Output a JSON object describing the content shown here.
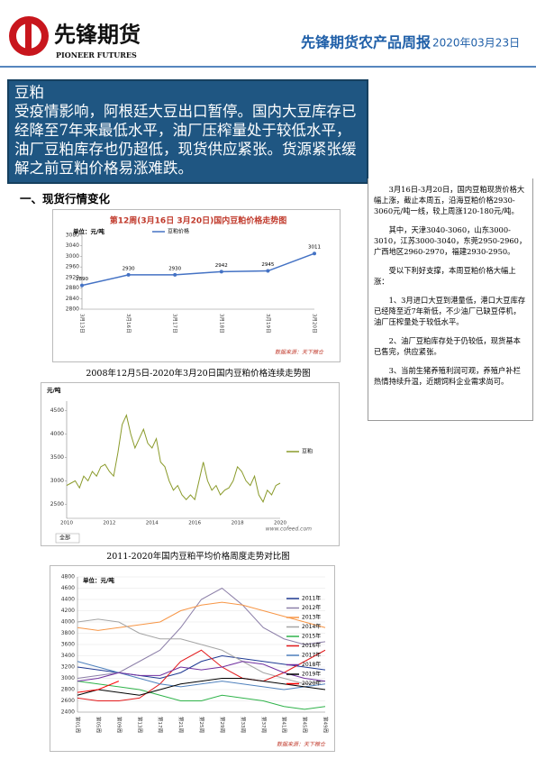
{
  "header": {
    "logo_cn": "先锋期货",
    "logo_en": "PIONEER FUTURES",
    "title": "先锋期货农产品周报",
    "date": "2020年03月23日"
  },
  "banner": {
    "title": "豆粕",
    "text": "受疫情影响，阿根廷大豆出口暂停。国内大豆库存已经降至7年来最低水平，油厂压榨量处于较低水平，油厂豆粕库存也仍超低，现货供应紧张。货源紧张缓解之前豆粕价格易涨难跌。"
  },
  "section": "一、现货行情变化",
  "right_column": [
    "3月16日-3月20日，国内豆粕现货价格大幅上涨，截止本周五，沿海豆粕价格2930-3060元/吨一线，较上周涨120-180元/吨。",
    "其中，天津3040-3060，山东3000-3010，江苏3000-3040，东莞2950-2960，广西地区2960-2970，福建2930-2950。",
    "受以下利好支撑，本周豆粕价格大幅上涨：",
    "1、3月进口大豆到港量低，港口大豆库存已经降至近7年新低，不少油厂已缺豆停机，油厂压榨量处于较低水平。",
    "2、油厂豆粕库存处于仍较低，现货基本已售完，供应紧张。",
    "3、当前生猪养殖利润可观，养殖户补栏热情持续升温，近期饲料企业需求尚可。"
  ],
  "charts": [
    {
      "type": "line",
      "title": "第12周(3月16日 3月20日)国内豆粕价格走势图",
      "y_label": "单位：元/吨",
      "source": "数据来源：天下粮仓",
      "categories": [
        "3月13日",
        "3月16日",
        "3月17日",
        "3月18日",
        "3月19日",
        "3月20日"
      ],
      "series": [
        {
          "name": "豆粕价格",
          "color": "#4472c4",
          "values": [
            2890,
            2930,
            2930,
            2942,
            2945,
            3011
          ]
        }
      ],
      "ylim": [
        2800,
        3080
      ],
      "yticks": [
        2800,
        2840,
        2880,
        2920,
        2960,
        3000,
        3040,
        3080
      ],
      "grid": false
    },
    {
      "type": "line",
      "caption": "2008年12月5日-2020年3月20日国内豆粕价格连续走势图",
      "y_label": "元/吨",
      "source": "www.cofeed.com",
      "range_button": "全部",
      "categories": [
        "2010",
        null,
        null,
        null,
        null,
        null,
        null,
        null,
        null,
        null,
        "2012",
        null,
        null,
        null,
        null,
        null,
        null,
        null,
        null,
        null,
        "2014",
        null,
        null,
        null,
        null,
        null,
        null,
        null,
        null,
        null,
        "2016",
        null,
        null,
        null,
        null,
        null,
        null,
        null,
        null,
        null,
        "2018",
        null,
        null,
        null,
        null,
        null,
        null,
        null,
        null,
        null,
        "2020"
      ],
      "series": [
        {
          "name": "豆粕",
          "color": "#8a9a2a",
          "values": [
            2900,
            2950,
            3000,
            2850,
            3100,
            3000,
            3200,
            3100,
            3300,
            3350,
            3200,
            3100,
            3600,
            4200,
            4400,
            4000,
            3700,
            3900,
            4100,
            3800,
            3700,
            3900,
            3400,
            3300,
            3000,
            2800,
            2900,
            2700,
            2600,
            2700,
            2600,
            3000,
            3400,
            3000,
            2800,
            2900,
            2700,
            2800,
            2850,
            3000,
            3300,
            3200,
            3000,
            2900,
            3100,
            2700,
            2550,
            2800,
            2700,
            2900,
            2950
          ]
        }
      ],
      "ylim": [
        2200,
        4700
      ],
      "yticks": [
        2500,
        3000,
        3500,
        4000,
        4500
      ],
      "grid": false
    },
    {
      "type": "line",
      "caption": "2011-2020年国内豆粕平均价格周度走势对比图",
      "y_label": "单位：元/吨",
      "source": "数据来源：天下粮仓",
      "categories": [
        "第01周",
        "第05周",
        "第09周",
        "第13周",
        "第17周",
        "第21周",
        "第25周",
        "第29周",
        "第33周",
        "第37周",
        "第41周",
        "第45周",
        "第49周"
      ],
      "series": [
        {
          "name": "2011年",
          "color": "#1f3a93",
          "values": [
            3200,
            3150,
            3100,
            3050,
            3000,
            3100,
            3300,
            3400,
            3350,
            3300,
            3250,
            3200,
            3150
          ]
        },
        {
          "name": "2012年",
          "color": "#8c7fa8",
          "values": [
            3000,
            3050,
            3100,
            3300,
            3500,
            3900,
            4400,
            4600,
            4300,
            3900,
            3700,
            3600,
            3650
          ]
        },
        {
          "name": "2013年",
          "color": "#f79646",
          "values": [
            3900,
            3850,
            3900,
            3950,
            4000,
            4200,
            4300,
            4350,
            4300,
            4200,
            4100,
            4000,
            3900
          ]
        },
        {
          "name": "2014年",
          "color": "#a5a5a5",
          "values": [
            4000,
            4050,
            4000,
            3800,
            3700,
            3700,
            3600,
            3500,
            3300,
            3100,
            3000,
            2900,
            2950
          ]
        },
        {
          "name": "2015年",
          "color": "#2fb34a",
          "values": [
            2950,
            2900,
            2850,
            2800,
            2700,
            2600,
            2600,
            2700,
            2650,
            2600,
            2500,
            2450,
            2500
          ]
        },
        {
          "name": "2016年",
          "color": "#e31a1c",
          "values": [
            2650,
            2600,
            2600,
            2650,
            2900,
            3300,
            3500,
            3200,
            3000,
            2950,
            3100,
            3300,
            3500
          ]
        },
        {
          "name": "2017年",
          "color": "#4f81bd",
          "values": [
            3300,
            3200,
            3100,
            3000,
            2900,
            2850,
            2900,
            2950,
            2900,
            2850,
            2800,
            2850,
            2900
          ]
        },
        {
          "name": "2018年",
          "color": "#7030a0",
          "values": [
            2950,
            3000,
            3100,
            3050,
            3050,
            3200,
            3150,
            3200,
            3300,
            3250,
            3100,
            3000,
            2950
          ]
        },
        {
          "name": "2019年",
          "color": "#000000",
          "values": [
            2700,
            2800,
            2750,
            2700,
            2800,
            2900,
            2950,
            3000,
            3000,
            2950,
            2900,
            2850,
            2800
          ]
        },
        {
          "name": "2020年",
          "color": "#ff0000",
          "values": [
            2750,
            2800,
            2950,
            null,
            null,
            null,
            null,
            null,
            null,
            null,
            null,
            null,
            null
          ]
        }
      ],
      "ylim": [
        2400,
        4800
      ],
      "yticks": [
        2400,
        2600,
        2800,
        3000,
        3200,
        3400,
        3600,
        3800,
        4000,
        4200,
        4400,
        4600,
        4800
      ],
      "grid": true
    }
  ]
}
